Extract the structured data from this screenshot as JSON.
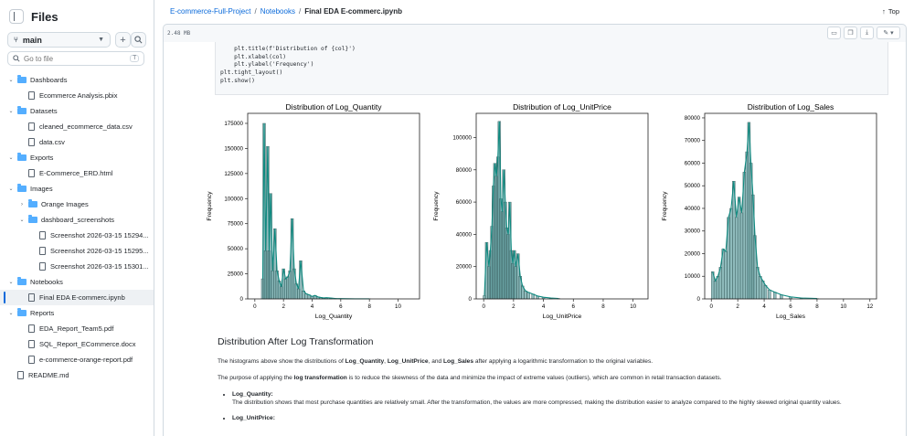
{
  "sidebar": {
    "title": "Files",
    "branch": "main",
    "search_placeholder": "Go to file",
    "search_shortcut": "T",
    "tree": [
      {
        "label": "Dashboards",
        "type": "folder",
        "depth": 0,
        "open": true
      },
      {
        "label": "Ecommerce Analysis.pbix",
        "type": "file",
        "depth": 1
      },
      {
        "label": "Datasets",
        "type": "folder",
        "depth": 0,
        "open": true
      },
      {
        "label": "cleaned_ecommerce_data.csv",
        "type": "file",
        "depth": 1
      },
      {
        "label": "data.csv",
        "type": "file",
        "depth": 1
      },
      {
        "label": "Exports",
        "type": "folder",
        "depth": 0,
        "open": true
      },
      {
        "label": "E-Commerce_ERD.html",
        "type": "file",
        "depth": 1
      },
      {
        "label": "Images",
        "type": "folder",
        "depth": 0,
        "open": true
      },
      {
        "label": "Orange Images",
        "type": "folder",
        "depth": 1,
        "open": false
      },
      {
        "label": "dashboard_screenshots",
        "type": "folder",
        "depth": 1,
        "open": true
      },
      {
        "label": "Screenshot 2026-03-15 15294...",
        "type": "file",
        "depth": 2
      },
      {
        "label": "Screenshot 2026-03-15 15295...",
        "type": "file",
        "depth": 2
      },
      {
        "label": "Screenshot 2026-03-15 15301...",
        "type": "file",
        "depth": 2
      },
      {
        "label": "Notebooks",
        "type": "folder",
        "depth": 0,
        "open": true
      },
      {
        "label": "Final EDA E-commerc.ipynb",
        "type": "file",
        "depth": 1,
        "selected": true
      },
      {
        "label": "Reports",
        "type": "folder",
        "depth": 0,
        "open": true
      },
      {
        "label": "EDA_Report_Team5.pdf",
        "type": "file",
        "depth": 1
      },
      {
        "label": "SQL_Report_ECommerce.docx",
        "type": "file",
        "depth": 1
      },
      {
        "label": "e-commerce-orange-report.pdf",
        "type": "file",
        "depth": 1
      },
      {
        "label": "README.md",
        "type": "file",
        "depth": 0
      }
    ]
  },
  "header": {
    "breadcrumb": [
      "E-commerce-Full-Project",
      "Notebooks",
      "Final EDA E-commerc.ipynb"
    ],
    "top_label": "Top",
    "file_size": "2.48 MB"
  },
  "code_lines": [
    "    plt.title(f'Distribution of {col}')",
    "    plt.xlabel(col)",
    "    plt.ylabel('Frequency')",
    "",
    "plt.tight_layout()",
    "plt.show()"
  ],
  "colors": {
    "accent": "#0969da",
    "bar": "#5f9ea0",
    "kde": "#0f8a80"
  },
  "chart_data": [
    {
      "type": "bar",
      "title": "Distribution of Log_Quantity",
      "xlabel": "Log_Quantity",
      "ylabel": "Frequency",
      "xlim": [
        -0.5,
        11.5
      ],
      "ylim": [
        0,
        185000
      ],
      "xticks": [
        0,
        2,
        4,
        6,
        8,
        10
      ],
      "yticks": [
        0,
        25000,
        50000,
        75000,
        100000,
        125000,
        150000,
        175000
      ],
      "bins": [
        [
          0.55,
          20000
        ],
        [
          0.65,
          175000
        ],
        [
          0.75,
          48000
        ],
        [
          0.9,
          152000
        ],
        [
          1.0,
          48000
        ],
        [
          1.1,
          105000
        ],
        [
          1.25,
          28000
        ],
        [
          1.4,
          70000
        ],
        [
          1.55,
          28000
        ],
        [
          1.7,
          18000
        ],
        [
          1.85,
          12000
        ],
        [
          2.0,
          30000
        ],
        [
          2.15,
          20000
        ],
        [
          2.3,
          22000
        ],
        [
          2.45,
          28000
        ],
        [
          2.6,
          80000
        ],
        [
          2.75,
          30000
        ],
        [
          2.9,
          15000
        ],
        [
          3.05,
          10000
        ],
        [
          3.2,
          38000
        ],
        [
          3.4,
          8000
        ],
        [
          3.6,
          5000
        ],
        [
          3.8,
          4000
        ],
        [
          4.0,
          2500
        ],
        [
          4.2,
          3500
        ],
        [
          4.4,
          2000
        ],
        [
          4.6,
          1500
        ],
        [
          4.8,
          1000
        ],
        [
          5.0,
          1200
        ],
        [
          5.3,
          800
        ],
        [
          5.6,
          500
        ],
        [
          6.0,
          300
        ],
        [
          6.5,
          200
        ],
        [
          7.0,
          100
        ],
        [
          8.0,
          50
        ]
      ]
    },
    {
      "type": "bar",
      "title": "Distribution of Log_UnitPrice",
      "xlabel": "Log_UnitPrice",
      "ylabel": "Frequency",
      "xlim": [
        -0.5,
        11
      ],
      "ylim": [
        0,
        115000
      ],
      "xticks": [
        0,
        2,
        4,
        6,
        8,
        10
      ],
      "yticks": [
        0,
        20000,
        40000,
        60000,
        80000,
        100000
      ],
      "bins": [
        [
          0.05,
          2000
        ],
        [
          0.2,
          35000
        ],
        [
          0.35,
          20000
        ],
        [
          0.45,
          30000
        ],
        [
          0.55,
          45000
        ],
        [
          0.65,
          70000
        ],
        [
          0.75,
          84000
        ],
        [
          0.85,
          76000
        ],
        [
          0.95,
          88000
        ],
        [
          1.05,
          110000
        ],
        [
          1.15,
          62000
        ],
        [
          1.25,
          54000
        ],
        [
          1.35,
          80000
        ],
        [
          1.45,
          60000
        ],
        [
          1.55,
          44000
        ],
        [
          1.65,
          40000
        ],
        [
          1.75,
          60000
        ],
        [
          1.85,
          30000
        ],
        [
          1.95,
          22000
        ],
        [
          2.05,
          30000
        ],
        [
          2.15,
          20000
        ],
        [
          2.3,
          28000
        ],
        [
          2.45,
          14000
        ],
        [
          2.6,
          8000
        ],
        [
          2.8,
          5000
        ],
        [
          3.0,
          4000
        ],
        [
          3.3,
          3000
        ],
        [
          3.6,
          1800
        ],
        [
          4.0,
          1000
        ],
        [
          4.5,
          500
        ],
        [
          5.0,
          300
        ]
      ]
    },
    {
      "type": "bar",
      "title": "Distribution of Log_Sales",
      "xlabel": "Log_Sales",
      "ylabel": "Frequency",
      "xlim": [
        -0.5,
        12.5
      ],
      "ylim": [
        0,
        82000
      ],
      "xticks": [
        0,
        2,
        4,
        6,
        8,
        10,
        12
      ],
      "yticks": [
        0,
        10000,
        20000,
        30000,
        40000,
        50000,
        60000,
        70000,
        80000
      ],
      "bins": [
        [
          0.1,
          12000
        ],
        [
          0.3,
          8000
        ],
        [
          0.5,
          10000
        ],
        [
          0.7,
          14000
        ],
        [
          0.9,
          22000
        ],
        [
          1.1,
          21000
        ],
        [
          1.3,
          36000
        ],
        [
          1.5,
          40000
        ],
        [
          1.7,
          52000
        ],
        [
          1.9,
          36000
        ],
        [
          2.1,
          45000
        ],
        [
          2.3,
          38000
        ],
        [
          2.5,
          56000
        ],
        [
          2.7,
          65000
        ],
        [
          2.85,
          78000
        ],
        [
          3.0,
          60000
        ],
        [
          3.15,
          46000
        ],
        [
          3.3,
          28000
        ],
        [
          3.5,
          14000
        ],
        [
          3.7,
          10000
        ],
        [
          3.9,
          8000
        ],
        [
          4.1,
          6000
        ],
        [
          4.4,
          4000
        ],
        [
          4.8,
          3000
        ],
        [
          5.3,
          1800
        ],
        [
          6.0,
          900
        ],
        [
          6.8,
          400
        ],
        [
          8.0,
          150
        ]
      ]
    }
  ],
  "markdown": {
    "heading": "Distribution After Log Transformation",
    "p1_pre": "The histograms above show the distributions of ",
    "p1_b1": "Log_Quantity",
    "p1_sep1": ", ",
    "p1_b2": "Log_UnitPrice",
    "p1_sep2": ", and ",
    "p1_b3": "Log_Sales",
    "p1_post": " after applying a logarithmic transformation to the original variables.",
    "p2_pre": "The purpose of applying the ",
    "p2_b": "log transformation",
    "p2_post": " is to reduce the skewness of the data and minimize the impact of extreme values (outliers), which are common in retail transaction datasets.",
    "b1_title": "Log_Quantity:",
    "b1_text": "The distribution shows that most purchase quantities are relatively small. After the transformation, the values are more compressed, making the distribution easier to analyze compared to the highly skewed original quantity values.",
    "b2_title": "Log_UnitPrice:"
  }
}
